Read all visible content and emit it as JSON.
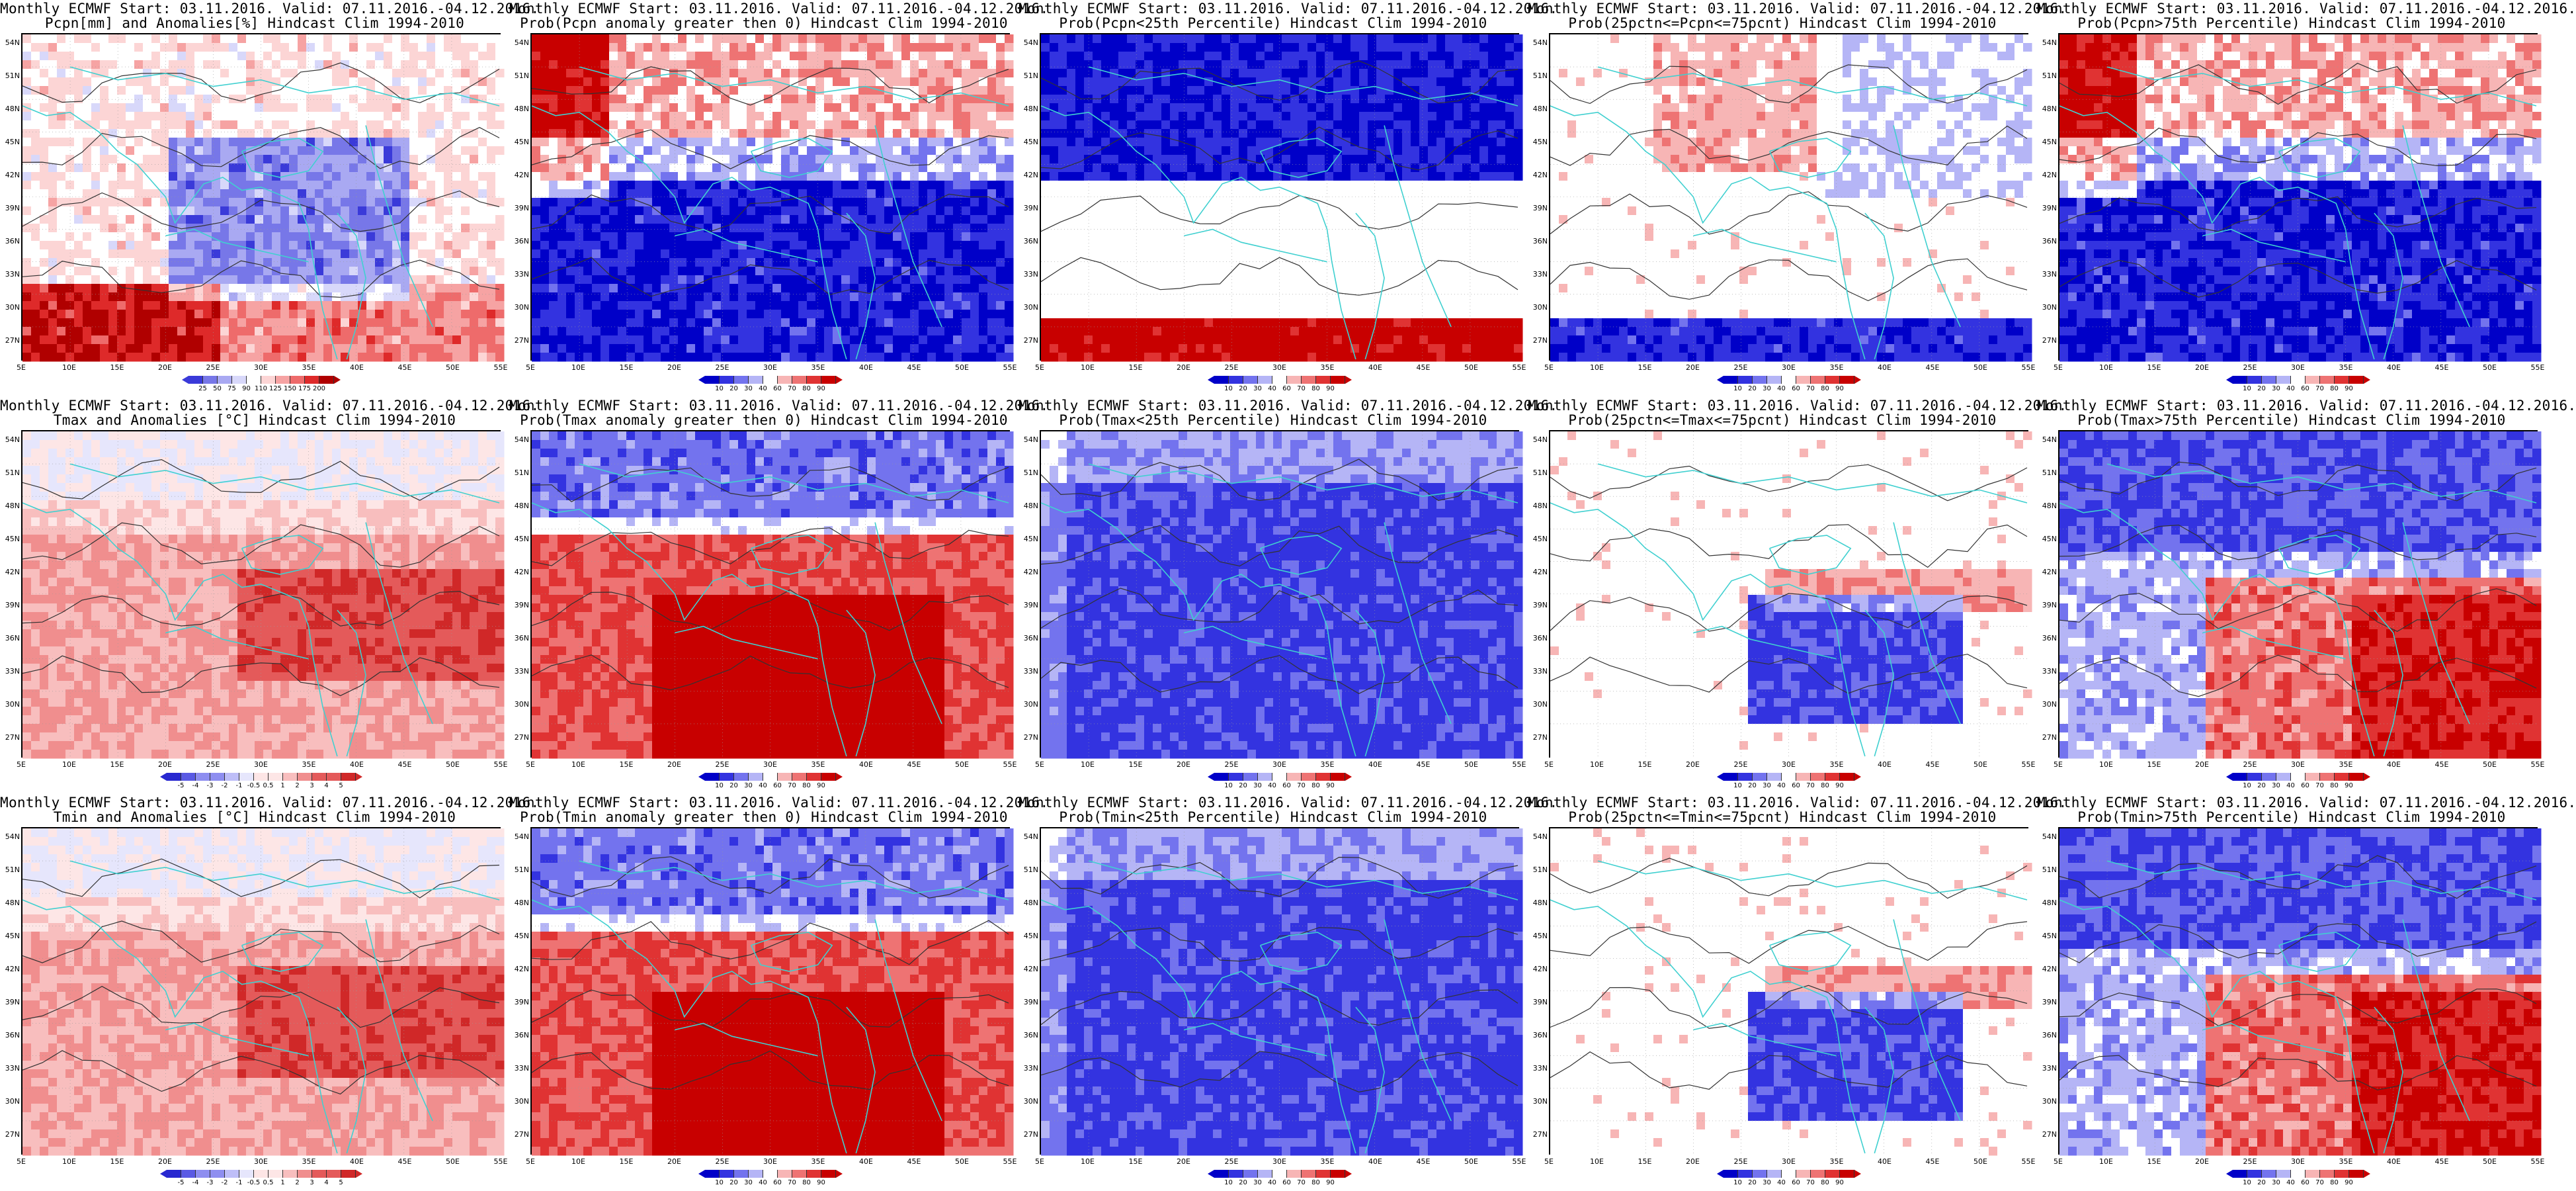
{
  "lat_labels": [
    "54N",
    "51N",
    "48N",
    "45N",
    "42N",
    "39N",
    "36N",
    "33N",
    "30N",
    "27N"
  ],
  "lon_labels": [
    "5E",
    "10E",
    "15E",
    "20E",
    "25E",
    "30E",
    "35E",
    "40E",
    "45E",
    "50E",
    "55E"
  ],
  "colors": {
    "precip_anom": [
      "#3a3ad9",
      "#7777e8",
      "#a9a9f2",
      "#d8d8fa",
      "#ffffff",
      "#fcd5d5",
      "#f6a3a3",
      "#ee6b6b",
      "#de2a2a",
      "#b00000"
    ],
    "prob": [
      "#0000c8",
      "#3333e0",
      "#7373ee",
      "#b5b5f6",
      "#ffffff",
      "#ffffff",
      "#f7b5b5",
      "#ee7373",
      "#e03333",
      "#c80000"
    ],
    "temp_anom": [
      "#2828d0",
      "#5a5ae4",
      "#8e8ef0",
      "#bebef8",
      "#e6e6fc",
      "#fde6e6",
      "#f8bebe",
      "#f08e8e",
      "#e45a5a",
      "#d02828"
    ],
    "coast": "#40d0d0"
  },
  "panels": [
    {
      "line1": "Monthly ECMWF Start: 03.11.2016. Valid: 07.11.2016.-04.12.2016.",
      "line2": "Pcpn[mm] and Anomalies[%] Hindcast Clim 1994-2010",
      "scale": "precip_anom",
      "ticks": [
        "25",
        "50",
        "75",
        "90",
        "110",
        "125",
        "150",
        "175",
        "200"
      ],
      "mode": "mixed"
    },
    {
      "line1": "Monthly ECMWF Start: 03.11.2016. Valid: 07.11.2016.-04.12.2016.",
      "line2": "Prob(Pcpn anomaly greater then 0) Hindcast Clim 1994-2010",
      "scale": "prob",
      "ticks": [
        "10",
        "20",
        "30",
        "40",
        "60",
        "70",
        "80",
        "90"
      ],
      "mode": "blue-south"
    },
    {
      "line1": "Monthly ECMWF Start: 03.11.2016. Valid: 07.11.2016.-04.12.2016.",
      "line2": "Prob(Pcpn<25th Percentile) Hindcast Clim 1994-2010",
      "scale": "prob",
      "ticks": [
        "10",
        "20",
        "30",
        "40",
        "60",
        "70",
        "80",
        "90"
      ],
      "mode": "blue-north"
    },
    {
      "line1": "Monthly ECMWF Start: 03.11.2016. Valid: 07.11.2016.-04.12.2016.",
      "line2": "Prob(25pctn<=Pcpn<=75pcnt) Hindcast Clim 1994-2010",
      "scale": "prob",
      "ticks": [
        "10",
        "20",
        "30",
        "40",
        "60",
        "70",
        "80",
        "90"
      ],
      "mode": "white-blue-south"
    },
    {
      "line1": "Monthly ECMWF Start: 03.11.2016. Valid: 07.11.2016.-04.12.2016.",
      "line2": "Prob(Pcpn>75th Percentile) Hindcast Clim 1994-2010",
      "scale": "prob",
      "ticks": [
        "10",
        "20",
        "30",
        "40",
        "60",
        "70",
        "80",
        "90"
      ],
      "mode": "blue-south"
    },
    {
      "line1": "Monthly ECMWF Start: 03.11.2016. Valid: 07.11.2016.-04.12.2016.",
      "line2": "Tmax and Anomalies [°C] Hindcast Clim 1994-2010",
      "scale": "temp_anom",
      "ticks": [
        "-5",
        "-4",
        "-3",
        "-2",
        "-1",
        "-0.5",
        "0.5",
        "1",
        "2",
        "3",
        "4",
        "5"
      ],
      "mode": "warm-light"
    },
    {
      "line1": "Monthly ECMWF Start: 03.11.2016. Valid: 07.11.2016.-04.12.2016.",
      "line2": "Prob(Tmax anomaly greater then 0) Hindcast Clim 1994-2010",
      "scale": "prob",
      "ticks": [
        "10",
        "20",
        "30",
        "40",
        "60",
        "70",
        "80",
        "90"
      ],
      "mode": "red-south"
    },
    {
      "line1": "Monthly ECMWF Start: 03.11.2016. Valid: 07.11.2016.-04.12.2016.",
      "line2": "Prob(Tmax<25th Percentile) Hindcast Clim 1994-2010",
      "scale": "prob",
      "ticks": [
        "10",
        "20",
        "30",
        "40",
        "60",
        "70",
        "80",
        "90"
      ],
      "mode": "blue-all"
    },
    {
      "line1": "Monthly ECMWF Start: 03.11.2016. Valid: 07.11.2016.-04.12.2016.",
      "line2": "Prob(25pctn<=Tmax<=75pcnt) Hindcast Clim 1994-2010",
      "scale": "prob",
      "ticks": [
        "10",
        "20",
        "30",
        "40",
        "60",
        "70",
        "80",
        "90"
      ],
      "mode": "white-blue-mid"
    },
    {
      "line1": "Monthly ECMWF Start: 03.11.2016. Valid: 07.11.2016.-04.12.2016.",
      "line2": "Prob(Tmax>75th Percentile) Hindcast Clim 1994-2010",
      "scale": "prob",
      "ticks": [
        "10",
        "20",
        "30",
        "40",
        "60",
        "70",
        "80",
        "90"
      ],
      "mode": "blue-north-red-south"
    },
    {
      "line1": "Monthly ECMWF Start: 03.11.2016. Valid: 07.11.2016.-04.12.2016.",
      "line2": "Tmin and Anomalies [°C] Hindcast Clim 1994-2010",
      "scale": "temp_anom",
      "ticks": [
        "-5",
        "-4",
        "-3",
        "-2",
        "-1",
        "-0.5",
        "0.5",
        "1",
        "2",
        "3",
        "4",
        "5"
      ],
      "mode": "warm-light"
    },
    {
      "line1": "Monthly ECMWF Start: 03.11.2016. Valid: 07.11.2016.-04.12.2016.",
      "line2": "Prob(Tmin anomaly greater then 0) Hindcast Clim 1994-2010",
      "scale": "prob",
      "ticks": [
        "10",
        "20",
        "30",
        "40",
        "60",
        "70",
        "80",
        "90"
      ],
      "mode": "red-south"
    },
    {
      "line1": "Monthly ECMWF Start: 03.11.2016. Valid: 07.11.2016.-04.12.2016.",
      "line2": "Prob(Tmin<25th Percentile) Hindcast Clim 1994-2010",
      "scale": "prob",
      "ticks": [
        "10",
        "20",
        "30",
        "40",
        "60",
        "70",
        "80",
        "90"
      ],
      "mode": "blue-all"
    },
    {
      "line1": "Monthly ECMWF Start: 03.11.2016. Valid: 07.11.2016.-04.12.2016.",
      "line2": "Prob(25pctn<=Tmin<=75pcnt) Hindcast Clim 1994-2010",
      "scale": "prob",
      "ticks": [
        "10",
        "20",
        "30",
        "40",
        "60",
        "70",
        "80",
        "90"
      ],
      "mode": "white-blue-mid"
    },
    {
      "line1": "Monthly ECMWF Start: 03.11.2016. Valid: 07.11.2016.-04.12.2016.",
      "line2": "Prob(Tmin>75th Percentile) Hindcast Clim 1994-2010",
      "scale": "prob",
      "ticks": [
        "10",
        "20",
        "30",
        "40",
        "60",
        "70",
        "80",
        "90"
      ],
      "mode": "blue-north-red-south"
    }
  ]
}
